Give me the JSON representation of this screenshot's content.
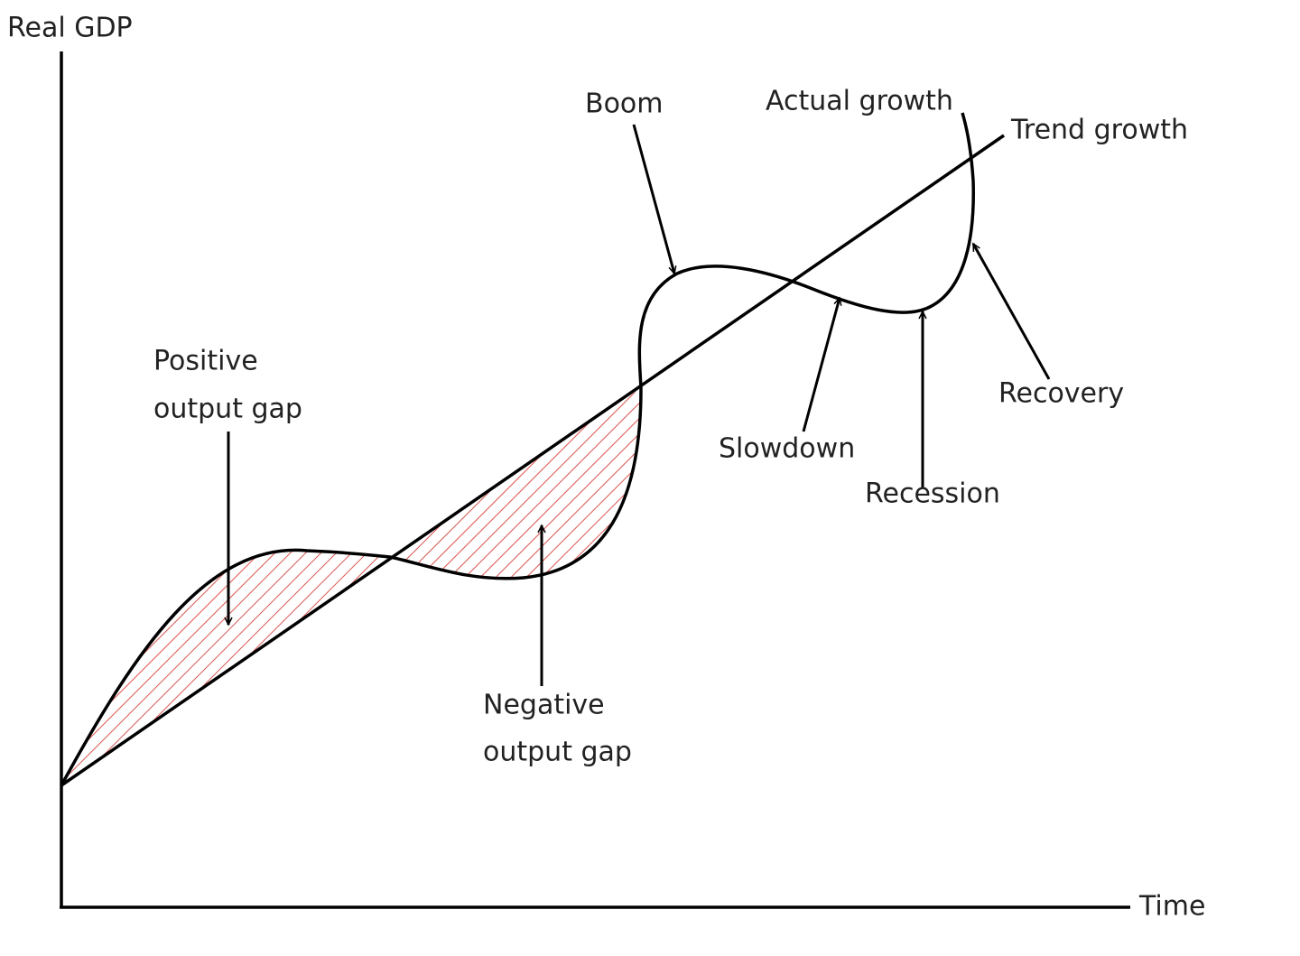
{
  "axes": {
    "y_label": "Real GDP",
    "x_label": "Time"
  },
  "curves": [
    {
      "label": "Trend growth"
    },
    {
      "label": "Actual growth"
    }
  ],
  "annotations": [
    {
      "label": "Boom"
    },
    {
      "lines": [
        "Positive",
        "output gap"
      ]
    },
    {
      "lines": [
        "Negative",
        "output gap"
      ]
    },
    {
      "label": "Slowdown"
    },
    {
      "label": "Recession"
    },
    {
      "label": "Recovery"
    }
  ]
}
